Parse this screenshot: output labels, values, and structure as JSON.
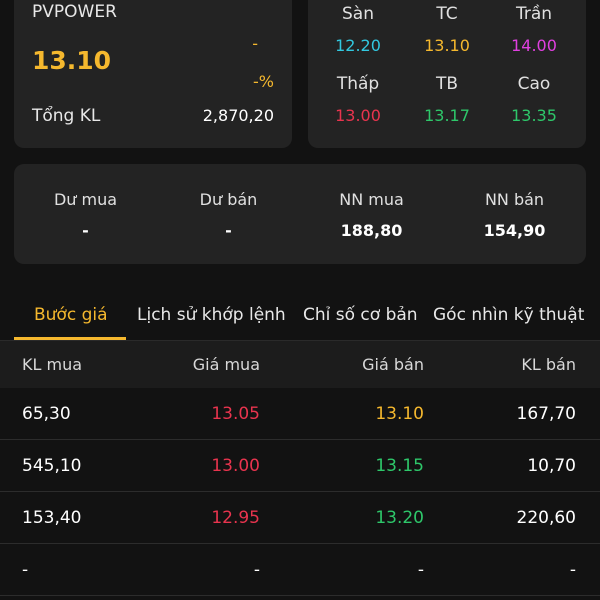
{
  "ticker": {
    "symbol": "PVPOWER",
    "last_price": "13.10",
    "change": "-",
    "change_pct": "-%",
    "total_volume_label": "Tổng KL",
    "total_volume": "2,870,20"
  },
  "price_levels": {
    "floor": {
      "label": "Sàn",
      "value": "12.20",
      "color": "#32c8e0"
    },
    "reference": {
      "label": "TC",
      "value": "13.10",
      "color": "#f5b82e"
    },
    "ceiling": {
      "label": "Trần",
      "value": "14.00",
      "color": "#e040e0"
    },
    "low": {
      "label": "Thấp",
      "value": "13.00",
      "color": "#e8344e"
    },
    "average": {
      "label": "TB",
      "value": "13.17",
      "color": "#2ec76a"
    },
    "high": {
      "label": "Cao",
      "value": "13.35",
      "color": "#2ec76a"
    }
  },
  "order_flow": {
    "surplus_buy": {
      "label": "Dư mua",
      "value": "-"
    },
    "surplus_sell": {
      "label": "Dư bán",
      "value": "-"
    },
    "foreign_buy": {
      "label": "NN mua",
      "value": "188,80"
    },
    "foreign_sell": {
      "label": "NN bán",
      "value": "154,90"
    }
  },
  "tabs": [
    {
      "label": "Bước giá",
      "active": true
    },
    {
      "label": "Lịch sử khớp lệnh",
      "active": false
    },
    {
      "label": "Chỉ số cơ bản",
      "active": false
    },
    {
      "label": "Góc nhìn kỹ thuật",
      "active": false
    }
  ],
  "order_book": {
    "headers": [
      "KL mua",
      "Giá mua",
      "Giá bán",
      "KL bán"
    ],
    "rows": [
      {
        "bid_vol": "65,30",
        "bid": "13.05",
        "ask": "13.10",
        "ask_vol": "167,70",
        "bid_color": "#e8344e",
        "ask_color": "#f5b82e"
      },
      {
        "bid_vol": "545,10",
        "bid": "13.00",
        "ask": "13.15",
        "ask_vol": "10,70",
        "bid_color": "#e8344e",
        "ask_color": "#2ec76a"
      },
      {
        "bid_vol": "153,40",
        "bid": "12.95",
        "ask": "13.20",
        "ask_vol": "220,60",
        "bid_color": "#e8344e",
        "ask_color": "#2ec76a"
      },
      {
        "bid_vol": "-",
        "bid": "-",
        "ask": "-",
        "ask_vol": "-",
        "bid_color": "#ffffff",
        "ask_color": "#ffffff"
      }
    ]
  },
  "colors": {
    "accent": "#f5b82e",
    "background": "#121212",
    "card": "#232323"
  }
}
